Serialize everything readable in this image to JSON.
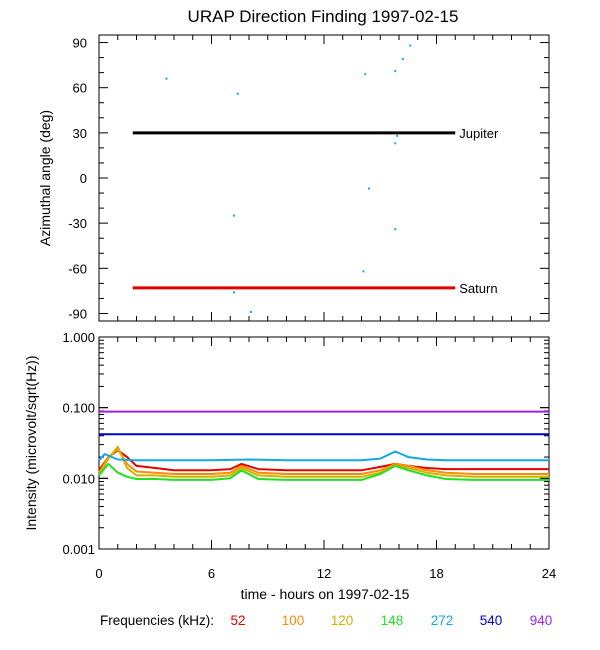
{
  "title": "URAP Direction Finding  1997-02-15",
  "x_axis": {
    "label": "time - hours on 1997-02-15",
    "range": [
      0,
      24
    ],
    "ticks": [
      0,
      6,
      12,
      18,
      24
    ]
  },
  "legend": {
    "label": "Frequencies (kHz):",
    "items": [
      {
        "text": "52",
        "color": "#e00000"
      },
      {
        "text": "100",
        "color": "#ff8c00"
      },
      {
        "text": "120",
        "color": "#d4b000"
      },
      {
        "text": "148",
        "color": "#20e020"
      },
      {
        "text": "272",
        "color": "#10a8e8"
      },
      {
        "text": "540",
        "color": "#0000d0"
      },
      {
        "text": "940",
        "color": "#a020f0"
      }
    ]
  },
  "chart_data": [
    {
      "type": "scatter",
      "ylabel": "Azimuthal angle (deg)",
      "xlim": [
        0,
        24
      ],
      "ylim": [
        -95,
        95
      ],
      "y_ticks": [
        90,
        60,
        30,
        0,
        -30,
        -60,
        -90
      ],
      "reference_lines": [
        {
          "name": "Jupiter",
          "y": 30,
          "x": [
            1.8,
            19.0
          ],
          "color": "#000000"
        },
        {
          "name": "Saturn",
          "y": -73,
          "x": [
            1.8,
            19.0
          ],
          "color": "#e00000"
        }
      ],
      "points": [
        {
          "x": 3.6,
          "y": 66
        },
        {
          "x": 7.4,
          "y": 56
        },
        {
          "x": 7.2,
          "y": -25
        },
        {
          "x": 7.2,
          "y": -76
        },
        {
          "x": 8.1,
          "y": -89
        },
        {
          "x": 14.2,
          "y": 69
        },
        {
          "x": 14.4,
          "y": -7
        },
        {
          "x": 14.1,
          "y": -62
        },
        {
          "x": 15.8,
          "y": 71
        },
        {
          "x": 16.2,
          "y": 79
        },
        {
          "x": 16.6,
          "y": 88
        },
        {
          "x": 15.9,
          "y": 28
        },
        {
          "x": 15.8,
          "y": 23
        },
        {
          "x": 15.8,
          "y": -34
        }
      ],
      "point_color": "#10a8e8"
    },
    {
      "type": "line",
      "ylabel": "Intensity (microvolt/sqrt(Hz))",
      "xlim": [
        0,
        24
      ],
      "ylim": [
        0.001,
        1.0
      ],
      "yscale": "log",
      "y_ticks": [
        1.0,
        0.1,
        0.01,
        0.001
      ],
      "y_tick_labels": [
        "1.000",
        "0.100",
        "0.010",
        "0.001"
      ],
      "series": [
        {
          "name": "52",
          "color": "#e00000",
          "x": [
            0,
            0.5,
            1.0,
            1.5,
            2.0,
            3.0,
            4.0,
            6.0,
            7.0,
            7.6,
            8.5,
            10,
            12,
            14,
            15,
            15.8,
            16.5,
            17.5,
            18.5,
            20,
            22,
            24
          ],
          "values": [
            0.013,
            0.02,
            0.025,
            0.02,
            0.015,
            0.014,
            0.013,
            0.013,
            0.0135,
            0.016,
            0.0135,
            0.013,
            0.013,
            0.013,
            0.0145,
            0.016,
            0.015,
            0.014,
            0.0135,
            0.0135,
            0.0135,
            0.0135
          ]
        },
        {
          "name": "100",
          "color": "#ff8c00",
          "x": [
            0,
            0.5,
            1.0,
            1.5,
            2.0,
            3.0,
            4.0,
            6.0,
            7.0,
            7.6,
            8.5,
            10,
            12,
            14,
            15,
            15.8,
            16.5,
            17.5,
            18.5,
            20,
            22,
            24
          ],
          "values": [
            0.012,
            0.02,
            0.026,
            0.016,
            0.0125,
            0.012,
            0.0115,
            0.0115,
            0.012,
            0.015,
            0.012,
            0.0115,
            0.0115,
            0.0115,
            0.013,
            0.016,
            0.015,
            0.013,
            0.012,
            0.0115,
            0.0115,
            0.0115
          ]
        },
        {
          "name": "120",
          "color": "#d4b000",
          "x": [
            0,
            0.5,
            1.0,
            1.5,
            2.0,
            3.0,
            4.0,
            6.0,
            7.0,
            7.6,
            8.5,
            10,
            12,
            14,
            15,
            15.8,
            16.5,
            17.5,
            18.5,
            20,
            22,
            24
          ],
          "values": [
            0.011,
            0.019,
            0.028,
            0.014,
            0.011,
            0.011,
            0.0105,
            0.0105,
            0.011,
            0.014,
            0.011,
            0.0105,
            0.0105,
            0.0105,
            0.012,
            0.015,
            0.014,
            0.012,
            0.011,
            0.0105,
            0.0105,
            0.0105
          ]
        },
        {
          "name": "148",
          "color": "#20e020",
          "x": [
            0,
            0.5,
            1.0,
            1.5,
            2.0,
            3.0,
            4.0,
            6.0,
            7.0,
            7.6,
            8.5,
            10,
            12,
            14,
            15,
            15.8,
            16.5,
            17.5,
            18.5,
            20,
            22,
            24
          ],
          "values": [
            0.011,
            0.016,
            0.012,
            0.0105,
            0.0098,
            0.0098,
            0.0095,
            0.0095,
            0.01,
            0.013,
            0.0098,
            0.0095,
            0.0095,
            0.0095,
            0.0115,
            0.015,
            0.013,
            0.011,
            0.0098,
            0.0095,
            0.0095,
            0.0095
          ]
        },
        {
          "name": "272",
          "color": "#10a8e8",
          "x": [
            0,
            0.3,
            1.0,
            2.0,
            4,
            6,
            8,
            10,
            12,
            14,
            15,
            15.8,
            16.5,
            17.5,
            18.5,
            20,
            22,
            24
          ],
          "values": [
            0.018,
            0.022,
            0.0185,
            0.018,
            0.018,
            0.018,
            0.0185,
            0.018,
            0.018,
            0.018,
            0.019,
            0.024,
            0.02,
            0.0185,
            0.018,
            0.018,
            0.018,
            0.018
          ]
        },
        {
          "name": "540",
          "color": "#0000d0",
          "x": [
            0,
            24
          ],
          "values": [
            0.042,
            0.042
          ]
        },
        {
          "name": "940",
          "color": "#a020f0",
          "x": [
            0,
            24
          ],
          "values": [
            0.088,
            0.088
          ]
        }
      ]
    }
  ]
}
